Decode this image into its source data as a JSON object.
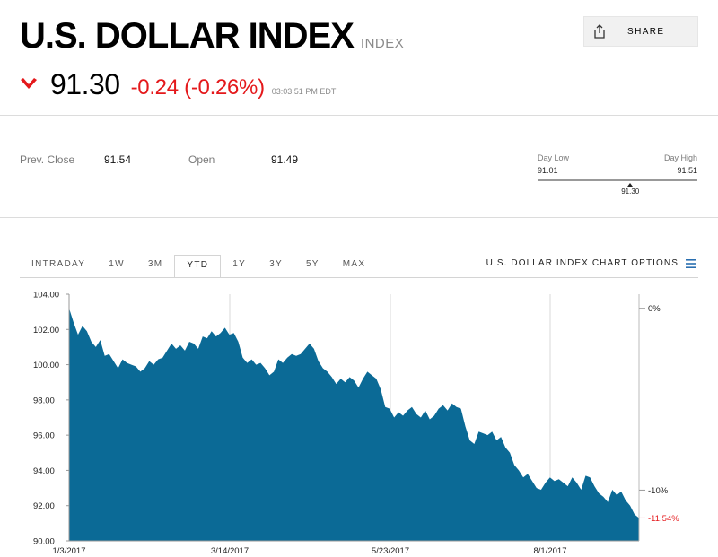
{
  "header": {
    "title": "U.S. DOLLAR INDEX",
    "type": "INDEX",
    "share_label": "SHARE",
    "price": "91.30",
    "change": "-0.24 (-0.26%)",
    "time": "03:03:51 PM EDT",
    "colors": {
      "down": "#e4181b",
      "muted": "#8a8a8a"
    }
  },
  "stats": {
    "prev_close_label": "Prev. Close",
    "prev_close": "91.54",
    "open_label": "Open",
    "open": "91.49"
  },
  "day_range": {
    "low_label": "Day Low",
    "low": "91.01",
    "high_label": "Day High",
    "high": "91.51",
    "current": "91.30"
  },
  "tabs": [
    {
      "label": "INTRADAY",
      "active": false
    },
    {
      "label": "1W",
      "active": false
    },
    {
      "label": "3M",
      "active": false
    },
    {
      "label": "YTD",
      "active": true
    },
    {
      "label": "1Y",
      "active": false
    },
    {
      "label": "3Y",
      "active": false
    },
    {
      "label": "5Y",
      "active": false
    },
    {
      "label": "MAX",
      "active": false
    }
  ],
  "chart_options_label": "U.S. DOLLAR INDEX CHART OPTIONS",
  "chart_data": {
    "type": "area",
    "title": "",
    "xlabel": "",
    "ylabel": "",
    "ylim": [
      90,
      104
    ],
    "y_ticks": [
      "104.00",
      "102.00",
      "100.00",
      "98.00",
      "96.00",
      "94.00",
      "92.00",
      "90.00"
    ],
    "x_ticks": [
      "1/3/2017",
      "3/14/2017",
      "5/23/2017",
      "8/1/2017"
    ],
    "right_ticks": [
      "0%",
      "-10%"
    ],
    "last_change_label": "-11.54%",
    "grid": "vertical",
    "fill_color": "#0b6a96",
    "x_index_range": [
      0,
      200
    ],
    "series": [
      {
        "values": [
          103.2,
          102.4,
          101.7,
          102.2,
          101.9,
          101.3,
          101.0,
          101.4,
          100.5,
          100.6,
          100.2,
          99.8,
          100.3,
          100.1,
          100.0,
          99.9,
          99.6,
          99.8,
          100.2,
          100.0,
          100.3,
          100.4,
          100.8,
          101.2,
          100.9,
          101.1,
          100.8,
          101.3,
          101.2,
          100.9,
          101.6,
          101.5,
          101.9,
          101.6,
          101.8,
          102.1,
          101.7,
          101.8,
          101.3,
          100.4,
          100.1,
          100.3,
          100.0,
          100.1,
          99.8,
          99.4,
          99.6,
          100.3,
          100.1,
          100.4,
          100.6,
          100.5,
          100.6,
          100.9,
          101.2,
          100.9,
          100.2,
          99.8,
          99.6,
          99.3,
          98.9,
          99.2,
          99.0,
          99.3,
          99.1,
          98.7,
          99.2,
          99.6,
          99.4,
          99.2,
          98.6,
          97.6,
          97.5,
          97.0,
          97.3,
          97.1,
          97.4,
          97.6,
          97.2,
          97.0,
          97.4,
          96.9,
          97.1,
          97.5,
          97.7,
          97.4,
          97.8,
          97.6,
          97.5,
          96.5,
          95.7,
          95.5,
          96.2,
          96.1,
          96.0,
          96.2,
          95.7,
          95.9,
          95.3,
          95.0,
          94.3,
          94.0,
          93.6,
          93.8,
          93.4,
          93.0,
          92.9,
          93.3,
          93.6,
          93.4,
          93.5,
          93.3,
          93.1,
          93.6,
          93.3,
          92.9,
          93.7,
          93.6,
          93.1,
          92.7,
          92.5,
          92.2,
          92.9,
          92.6,
          92.8,
          92.3,
          92.0,
          91.5,
          91.3
        ]
      }
    ]
  }
}
